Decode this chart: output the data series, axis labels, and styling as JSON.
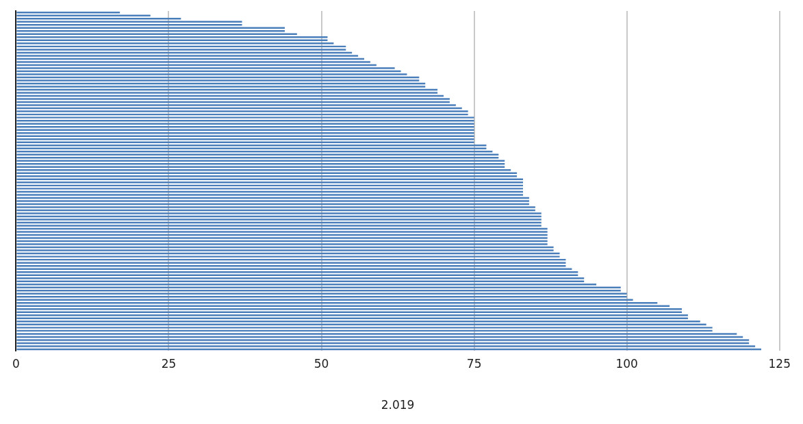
{
  "chart_data": {
    "type": "bar",
    "orientation": "horizontal",
    "xlabel": "2.019",
    "color": "#4a7ebb",
    "categories": [
      null,
      null,
      null,
      null,
      null,
      null,
      null,
      null,
      null,
      null,
      null,
      null,
      null,
      null,
      null,
      null,
      null,
      null,
      null,
      null,
      null,
      null,
      null,
      null,
      null,
      null,
      null,
      null,
      null,
      null,
      null,
      null,
      null,
      null,
      null,
      null,
      null,
      null,
      null,
      null,
      null,
      null,
      null,
      null,
      null,
      null,
      null,
      null,
      null,
      null,
      null,
      null,
      null,
      null,
      null,
      null,
      null,
      null,
      null,
      null,
      null,
      null,
      null,
      null,
      null,
      null,
      null,
      null,
      null,
      null,
      null,
      null,
      null,
      null,
      null,
      null,
      null,
      null,
      null,
      null,
      null,
      null,
      null,
      null,
      null,
      null,
      null,
      null,
      null,
      null,
      null,
      null,
      null,
      null,
      null,
      null,
      null,
      null,
      null,
      null,
      null,
      null,
      null,
      null,
      null,
      null,
      null,
      null,
      null,
      null
    ],
    "values": [
      17,
      22,
      27,
      37,
      37,
      44,
      44,
      46,
      51,
      51,
      52,
      54,
      54,
      55,
      56,
      57,
      58,
      59,
      62,
      63,
      64,
      66,
      66,
      67,
      67,
      69,
      69,
      70,
      71,
      71,
      72,
      73,
      74,
      74,
      75,
      75,
      75,
      75,
      75,
      75,
      75,
      75,
      75,
      77,
      77,
      78,
      79,
      79,
      80,
      80,
      80,
      81,
      82,
      82,
      83,
      83,
      83,
      83,
      83,
      83,
      84,
      84,
      84,
      85,
      85,
      86,
      86,
      86,
      86,
      86,
      87,
      87,
      87,
      87,
      87,
      87,
      88,
      88,
      89,
      89,
      90,
      90,
      90,
      91,
      92,
      92,
      93,
      93,
      95,
      99,
      99,
      100,
      100,
      101,
      105,
      107,
      109,
      109,
      110,
      110,
      112,
      113,
      114,
      114,
      118,
      119,
      120,
      120,
      121,
      122
    ],
    "xlim": [
      0,
      125
    ],
    "xticks": [
      0,
      25,
      50,
      75,
      100,
      125
    ],
    "grid": "x",
    "legend": false
  }
}
